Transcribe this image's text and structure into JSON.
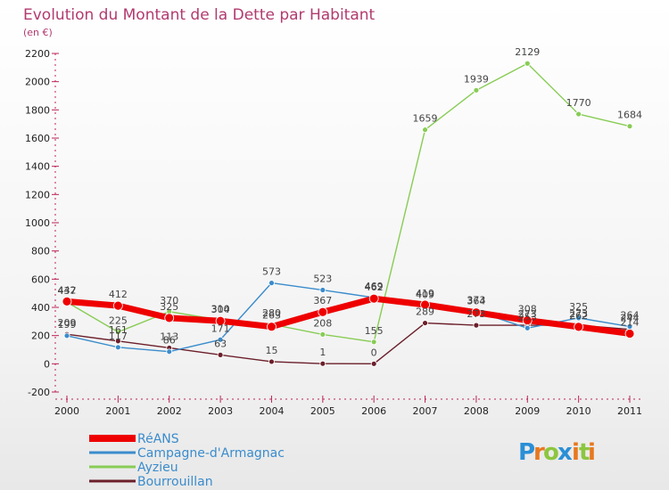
{
  "chart_data": {
    "type": "line",
    "title": "Evolution du Montant de la Dette par Habitant",
    "subtitle": "(en €)",
    "x": [
      "2000",
      "2001",
      "2002",
      "2003",
      "2004",
      "2005",
      "2006",
      "2007",
      "2008",
      "2009",
      "2010",
      "2011"
    ],
    "ylim": [
      -200,
      2200
    ],
    "yticks": [
      -200,
      0,
      200,
      400,
      600,
      800,
      1000,
      1200,
      1400,
      1600,
      1800,
      2000,
      2200
    ],
    "grid": false,
    "legend_position": "bottom-left",
    "series": [
      {
        "name": "RéANS",
        "color": "#ee0000",
        "values": [
          442,
          412,
          325,
          304,
          263,
          367,
          462,
          419,
          364,
          308,
          262,
          214
        ]
      },
      {
        "name": "Campagne-d'Armagnac",
        "color": "#3a8ccc",
        "values": [
          199,
          117,
          86,
          171,
          573,
          523,
          469,
          409,
          373,
          253,
          325,
          264
        ]
      },
      {
        "name": "Ayzieu",
        "color": "#88cc55",
        "values": [
          437,
          225,
          370,
          310,
          280,
          208,
          155,
          1659,
          1939,
          2129,
          1770,
          1684
        ]
      },
      {
        "name": "Bourrouillan",
        "color": "#6b1f2a",
        "values": [
          209,
          161,
          113,
          63,
          15,
          1,
          0,
          289,
          273,
          273,
          273,
          244
        ]
      }
    ]
  },
  "brand": {
    "letters": [
      "P",
      "r",
      "o",
      "x",
      "i",
      "t",
      "i"
    ],
    "colors": [
      "#2a8fd6",
      "#e8781e",
      "#8cc63f",
      "#2a8fd6",
      "#e8781e",
      "#8cc63f",
      "#e8781e"
    ]
  }
}
